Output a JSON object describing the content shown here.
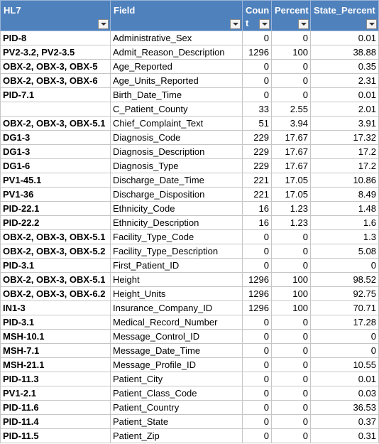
{
  "header": {
    "hl7": "HL7",
    "field": "Field",
    "count": "Count",
    "percent": "Percent",
    "state_percent": "State_Percent"
  },
  "rows": [
    {
      "hl7": "PID-8",
      "field": "Administrative_Sex",
      "count": "0",
      "percent": "0",
      "state_percent": "0.01"
    },
    {
      "hl7": "PV2-3.2, PV2-3.5",
      "field": "Admit_Reason_Description",
      "count": "1296",
      "percent": "100",
      "state_percent": "38.88"
    },
    {
      "hl7": "OBX-2, OBX-3, OBX-5",
      "field": "Age_Reported",
      "count": "0",
      "percent": "0",
      "state_percent": "0.35"
    },
    {
      "hl7": "OBX-2, OBX-3, OBX-6",
      "field": "Age_Units_Reported",
      "count": "0",
      "percent": "0",
      "state_percent": "2.31"
    },
    {
      "hl7": "PID-7.1",
      "field": "Birth_Date_Time",
      "count": "0",
      "percent": "0",
      "state_percent": "0.01"
    },
    {
      "hl7": "",
      "field": "C_Patient_County",
      "count": "33",
      "percent": "2.55",
      "state_percent": "2.01"
    },
    {
      "hl7": "OBX-2, OBX-3, OBX-5.1",
      "field": "Chief_Complaint_Text",
      "count": "51",
      "percent": "3.94",
      "state_percent": "3.91"
    },
    {
      "hl7": "DG1-3",
      "field": "Diagnosis_Code",
      "count": "229",
      "percent": "17.67",
      "state_percent": "17.32"
    },
    {
      "hl7": "DG1-3",
      "field": "Diagnosis_Description",
      "count": "229",
      "percent": "17.67",
      "state_percent": "17.2"
    },
    {
      "hl7": "DG1-6",
      "field": "Diagnosis_Type",
      "count": "229",
      "percent": "17.67",
      "state_percent": "17.2"
    },
    {
      "hl7": "PV1-45.1",
      "field": "Discharge_Date_Time",
      "count": "221",
      "percent": "17.05",
      "state_percent": "10.86"
    },
    {
      "hl7": "PV1-36",
      "field": "Discharge_Disposition",
      "count": "221",
      "percent": "17.05",
      "state_percent": "8.49"
    },
    {
      "hl7": "PID-22.1",
      "field": "Ethnicity_Code",
      "count": "16",
      "percent": "1.23",
      "state_percent": "1.48"
    },
    {
      "hl7": "PID-22.2",
      "field": "Ethnicity_Description",
      "count": "16",
      "percent": "1.23",
      "state_percent": "1.6"
    },
    {
      "hl7": "OBX-2, OBX-3, OBX-5.1",
      "field": "Facility_Type_Code",
      "count": "0",
      "percent": "0",
      "state_percent": "1.3"
    },
    {
      "hl7": "OBX-2, OBX-3, OBX-5.2",
      "field": "Facility_Type_Description",
      "count": "0",
      "percent": "0",
      "state_percent": "5.08"
    },
    {
      "hl7": "PID-3.1",
      "field": "First_Patient_ID",
      "count": "0",
      "percent": "0",
      "state_percent": "0"
    },
    {
      "hl7": "OBX-2, OBX-3, OBX-5.1",
      "field": "Height",
      "count": "1296",
      "percent": "100",
      "state_percent": "98.52"
    },
    {
      "hl7": "OBX-2, OBX-3, OBX-6.2",
      "field": "Height_Units",
      "count": "1296",
      "percent": "100",
      "state_percent": "92.75"
    },
    {
      "hl7": "IN1-3",
      "field": "Insurance_Company_ID",
      "count": "1296",
      "percent": "100",
      "state_percent": "70.71"
    },
    {
      "hl7": "PID-3.1",
      "field": "Medical_Record_Number",
      "count": "0",
      "percent": "0",
      "state_percent": "17.28"
    },
    {
      "hl7": "MSH-10.1",
      "field": "Message_Control_ID",
      "count": "0",
      "percent": "0",
      "state_percent": "0"
    },
    {
      "hl7": "MSH-7.1",
      "field": "Message_Date_Time",
      "count": "0",
      "percent": "0",
      "state_percent": "0"
    },
    {
      "hl7": "MSH-21.1",
      "field": "Message_Profile_ID",
      "count": "0",
      "percent": "0",
      "state_percent": "10.55"
    },
    {
      "hl7": "PID-11.3",
      "field": "Patient_City",
      "count": "0",
      "percent": "0",
      "state_percent": "0.01"
    },
    {
      "hl7": "PV1-2.1",
      "field": "Patient_Class_Code",
      "count": "0",
      "percent": "0",
      "state_percent": "0.03"
    },
    {
      "hl7": "PID-11.6",
      "field": "Patient_Country",
      "count": "0",
      "percent": "0",
      "state_percent": "36.53"
    },
    {
      "hl7": "PID-11.4",
      "field": "Patient_State",
      "count": "0",
      "percent": "0",
      "state_percent": "0.37"
    },
    {
      "hl7": "PID-11.5",
      "field": "Patient_Zip",
      "count": "0",
      "percent": "0",
      "state_percent": "0.31"
    }
  ]
}
